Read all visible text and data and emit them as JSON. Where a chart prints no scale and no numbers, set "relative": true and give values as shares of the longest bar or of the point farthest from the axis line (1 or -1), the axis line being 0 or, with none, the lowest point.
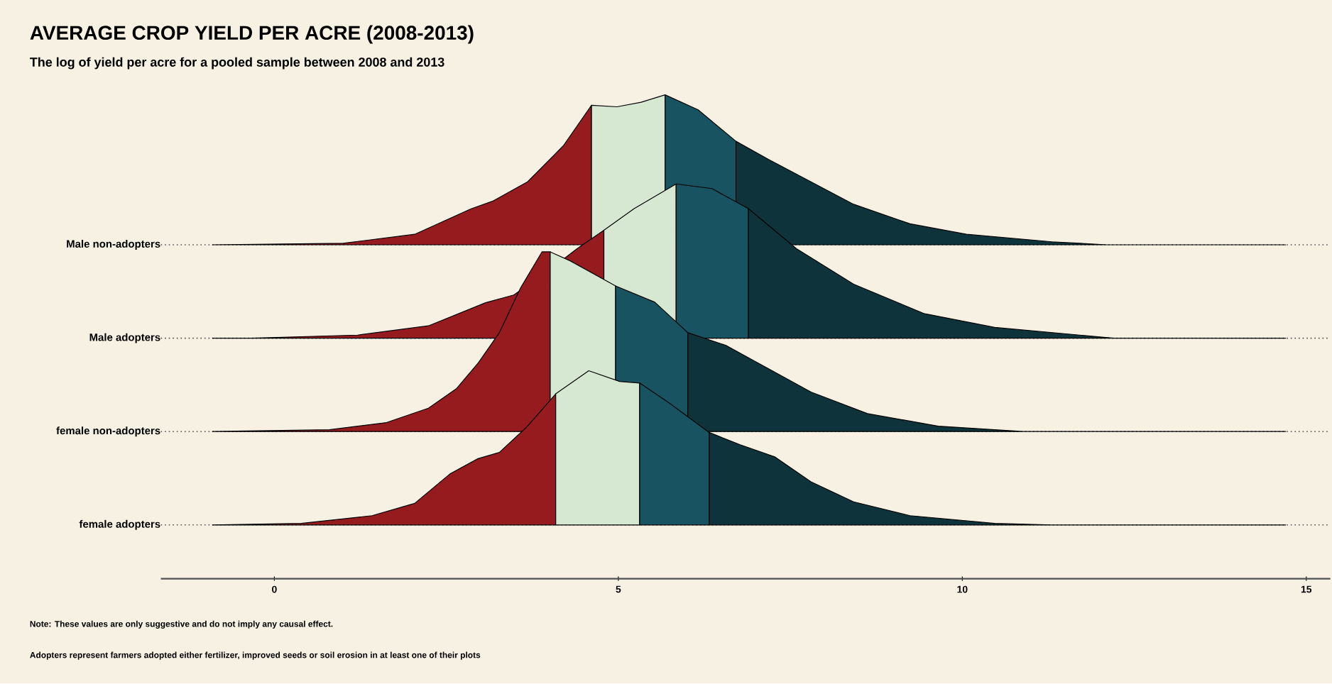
{
  "chart_data": [
    {
      "type": "area",
      "title": "AVERAGE CROP YIELD PER ACRE (2008-2013)",
      "subtitle": "The log of yield per acre for a pooled sample between 2008 and 2013",
      "ylabel": "Male non-adopters",
      "relative": true,
      "tick_labels": false,
      "xlim": [
        -1.65,
        15.35
      ],
      "series": [
        {
          "color": "#961b1e",
          "x": [
            -0.9,
            1.0,
            2.04,
            2.86,
            3.17,
            3.68,
            4.2,
            4.61
          ],
          "values": [
            0,
            0.01,
            0.07,
            0.24,
            0.29,
            0.42,
            0.66,
            0.93
          ]
        },
        {
          "color": "#d7e8d2",
          "x": [
            4.61,
            4.98,
            5.33,
            5.68
          ],
          "values": [
            0.93,
            0.92,
            0.95,
            1.0
          ]
        },
        {
          "color": "#175361",
          "x": [
            5.68,
            6.16,
            6.71
          ],
          "values": [
            1.0,
            0.9,
            0.69
          ]
        },
        {
          "color": "#0e333b",
          "x": [
            6.71,
            7.18,
            7.8,
            8.42,
            9.24,
            10.06,
            11.3,
            12.1,
            14.7
          ],
          "values": [
            0.69,
            0.57,
            0.42,
            0.27,
            0.14,
            0.07,
            0.02,
            0,
            0
          ]
        }
      ]
    },
    {
      "type": "area",
      "ylabel": "Male adopters",
      "relative": true,
      "tick_labels": false,
      "xlim": [
        -1.65,
        15.35
      ],
      "series": [
        {
          "color": "#961b1e",
          "x": [
            -0.9,
            -0.33,
            1.21,
            2.24,
            3.07,
            3.48,
            3.99,
            4.4,
            4.79
          ],
          "values": [
            0,
            0,
            0.02,
            0.08,
            0.23,
            0.28,
            0.44,
            0.58,
            0.7
          ]
        },
        {
          "color": "#d7e8d2",
          "x": [
            4.79,
            5.23,
            5.84
          ],
          "values": [
            0.7,
            0.84,
            1.0
          ]
        },
        {
          "color": "#175361",
          "x": [
            5.84,
            6.36,
            6.89
          ],
          "values": [
            1.0,
            0.97,
            0.84
          ]
        },
        {
          "color": "#0e333b",
          "x": [
            6.89,
            7.59,
            8.42,
            9.44,
            10.47,
            12.2,
            14.7
          ],
          "values": [
            0.84,
            0.58,
            0.35,
            0.16,
            0.07,
            0,
            0
          ]
        }
      ]
    },
    {
      "type": "area",
      "ylabel": "female non-adopters",
      "relative": true,
      "tick_labels": false,
      "xlim": [
        -1.65,
        15.35
      ],
      "series": [
        {
          "color": "#961b1e",
          "x": [
            -0.9,
            0.8,
            1.63,
            2.24,
            2.65,
            2.96,
            3.27,
            3.58,
            3.89,
            4.01
          ],
          "values": [
            0,
            0.01,
            0.05,
            0.13,
            0.24,
            0.38,
            0.55,
            0.8,
            1.0,
            1.0
          ]
        },
        {
          "color": "#d7e8d2",
          "x": [
            4.01,
            4.3,
            4.96
          ],
          "values": [
            1.0,
            0.95,
            0.81
          ]
        },
        {
          "color": "#175361",
          "x": [
            4.96,
            5.53,
            6.01
          ],
          "values": [
            0.81,
            0.72,
            0.55
          ]
        },
        {
          "color": "#0e333b",
          "x": [
            6.01,
            6.56,
            7.18,
            7.8,
            8.62,
            9.65,
            10.88,
            14.7
          ],
          "values": [
            0.55,
            0.48,
            0.35,
            0.22,
            0.1,
            0.03,
            0,
            0
          ]
        }
      ]
    },
    {
      "type": "area",
      "ylabel": "female adopters",
      "relative": true,
      "tick_labels": "x",
      "xlim": [
        -1.65,
        15.35
      ],
      "xticks": [
        0,
        5,
        10,
        15
      ],
      "annotations": [
        "Note: These values are only suggestive and do not imply any causal effect.",
        "Adopters represent farmers adopted either fertilizer, improved seeds or soil erosion in at least one of their plots"
      ],
      "ref_lines": [
        {
          "axis": "y",
          "value": 0,
          "line_style": "dotted",
          "color": "#505050"
        }
      ],
      "series": [
        {
          "color": "#961b1e",
          "x": [
            -0.9,
            0.39,
            1.42,
            2.04,
            2.55,
            2.96,
            3.27,
            3.68,
            4.09
          ],
          "values": [
            0,
            0.01,
            0.06,
            0.14,
            0.33,
            0.43,
            0.47,
            0.64,
            0.85
          ]
        },
        {
          "color": "#d7e8d2",
          "x": [
            4.09,
            4.57,
            5.02,
            5.31
          ],
          "values": [
            0.85,
            1.0,
            0.93,
            0.92
          ]
        },
        {
          "color": "#175361",
          "x": [
            5.31,
            5.74,
            6.32
          ],
          "values": [
            0.92,
            0.79,
            0.6
          ]
        },
        {
          "color": "#0e333b",
          "x": [
            6.32,
            6.77,
            7.28,
            7.8,
            8.42,
            9.24,
            10.47,
            11.3,
            14.7
          ],
          "values": [
            0.6,
            0.52,
            0.44,
            0.28,
            0.15,
            0.06,
            0.01,
            0,
            0
          ]
        }
      ]
    }
  ]
}
